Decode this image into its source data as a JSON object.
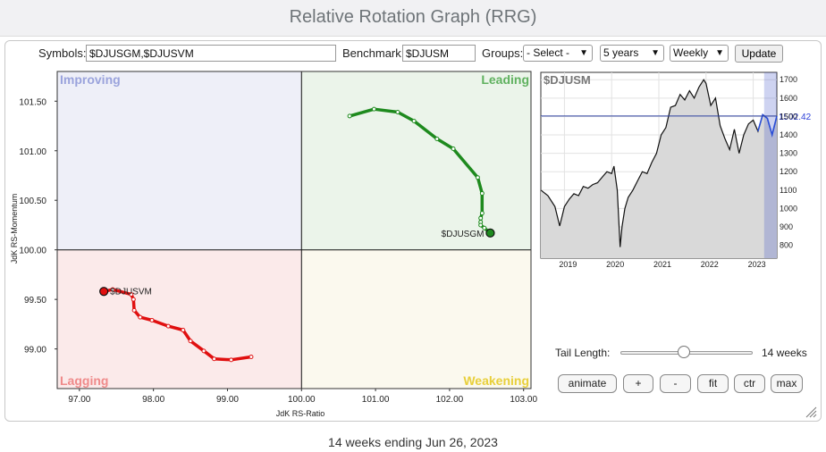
{
  "title": "Relative Rotation Graph (RRG)",
  "controls": {
    "symbols_label": "Symbols:",
    "symbols_value": "$DJUSGM,$DJUSVM",
    "benchmark_label": "Benchmark:",
    "benchmark_value": "$DJUSM",
    "groups_label": "Groups:",
    "groups_value": "- Select -",
    "period_value": "5 years",
    "frequency_value": "Weekly",
    "update_label": "Update"
  },
  "chart_data": [
    {
      "type": "scatter",
      "chart": "rrg",
      "xlabel": "JdK RS-Ratio",
      "ylabel": "JdK RS-Momentum",
      "xlim": [
        96.7,
        103.1
      ],
      "ylim": [
        98.6,
        101.8
      ],
      "xticks": [
        "97.00",
        "98.00",
        "99.00",
        "100.00",
        "101.00",
        "102.00",
        "103.00"
      ],
      "yticks": [
        "99.00",
        "99.50",
        "100.00",
        "100.50",
        "101.00",
        "101.50"
      ],
      "quadrants": {
        "improving": "Improving",
        "leading": "Leading",
        "lagging": "Lagging",
        "weakening": "Weakening"
      },
      "series": [
        {
          "name": "$DJUSGM",
          "color": "#1e8a1e",
          "x": [
            100.65,
            100.98,
            101.3,
            101.52,
            101.83,
            102.05,
            102.38,
            102.44,
            102.44,
            102.42,
            102.42,
            102.42,
            102.47,
            102.55
          ],
          "y": [
            101.35,
            101.42,
            101.39,
            101.3,
            101.12,
            101.02,
            100.73,
            100.57,
            100.37,
            100.32,
            100.28,
            100.25,
            100.22,
            100.17
          ]
        },
        {
          "name": "$DJUSVM",
          "color": "#e01010",
          "x": [
            99.32,
            99.05,
            98.82,
            98.68,
            98.5,
            98.4,
            98.2,
            97.98,
            97.82,
            97.74,
            97.73,
            97.7,
            97.45,
            97.33
          ],
          "y": [
            98.92,
            98.89,
            98.9,
            98.98,
            99.08,
            99.19,
            99.23,
            99.29,
            99.32,
            99.39,
            99.5,
            99.55,
            99.6,
            99.58
          ]
        }
      ]
    },
    {
      "type": "area",
      "name": "$DJUSM",
      "last_value": "1502.42",
      "x_ticks": [
        "2019",
        "2020",
        "2021",
        "2022",
        "2023"
      ],
      "y_ticks": [
        "800",
        "900",
        "1000",
        "1100",
        "1200",
        "1300",
        "1400",
        "1500",
        "1600",
        "1700"
      ],
      "ylim": [
        730,
        1740
      ],
      "x": [
        2018.5,
        2018.65,
        2018.8,
        2018.9,
        2019.0,
        2019.1,
        2019.2,
        2019.3,
        2019.4,
        2019.5,
        2019.6,
        2019.7,
        2019.8,
        2019.9,
        2020.0,
        2020.05,
        2020.12,
        2020.18,
        2020.22,
        2020.28,
        2020.35,
        2020.45,
        2020.55,
        2020.65,
        2020.75,
        2020.85,
        2020.95,
        2021.05,
        2021.15,
        2021.25,
        2021.35,
        2021.45,
        2021.55,
        2021.65,
        2021.75,
        2021.85,
        2021.95,
        2022.0,
        2022.1,
        2022.2,
        2022.3,
        2022.4,
        2022.5,
        2022.6,
        2022.7,
        2022.8,
        2022.9,
        2023.0,
        2023.1,
        2023.2,
        2023.3,
        2023.4,
        2023.5
      ],
      "y": [
        1100,
        1070,
        1010,
        905,
        1010,
        1050,
        1080,
        1070,
        1120,
        1110,
        1130,
        1140,
        1170,
        1200,
        1190,
        1230,
        1100,
        790,
        900,
        1000,
        1060,
        1100,
        1150,
        1200,
        1190,
        1250,
        1300,
        1400,
        1440,
        1550,
        1560,
        1620,
        1590,
        1640,
        1600,
        1660,
        1700,
        1680,
        1560,
        1600,
        1450,
        1380,
        1320,
        1430,
        1300,
        1400,
        1460,
        1480,
        1420,
        1510,
        1490,
        1400,
        1502
      ]
    }
  ],
  "slider": {
    "label": "Tail Length:",
    "value_text": "14 weeks",
    "fraction": 0.48
  },
  "buttons": {
    "animate": "animate",
    "plus": "+",
    "minus": "-",
    "fit": "fit",
    "ctr": "ctr",
    "max": "max"
  },
  "footer": "14 weeks ending Jun 26, 2023"
}
